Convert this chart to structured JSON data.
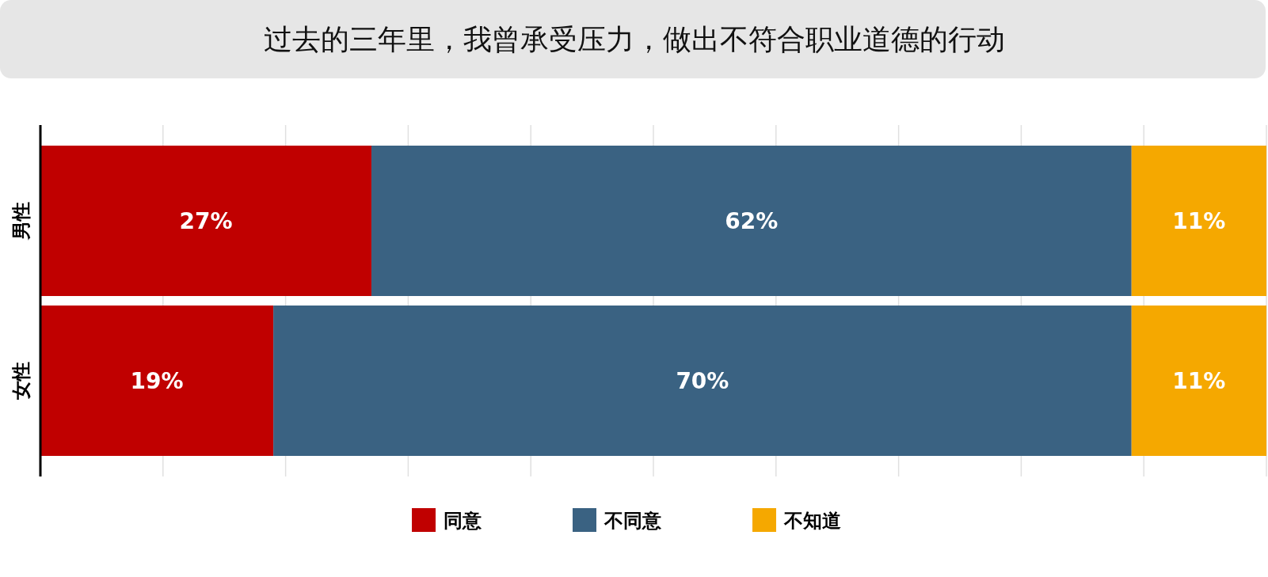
{
  "chart_data": {
    "type": "bar",
    "orientation": "horizontal",
    "stacked": true,
    "title": "过去的三年里，我曾承受压力，做出不符合职业道德的行动",
    "categories": [
      "男性",
      "女性"
    ],
    "series": [
      {
        "name": "同意",
        "color": "#c00000",
        "values": [
          27,
          19
        ],
        "value_labels": [
          "27%",
          "19%"
        ]
      },
      {
        "name": "不同意",
        "color": "#3a6282",
        "values": [
          62,
          70
        ],
        "value_labels": [
          "62%",
          "70%"
        ]
      },
      {
        "name": "不知道",
        "color": "#f5a800",
        "values": [
          11,
          11
        ],
        "value_labels": [
          "11%",
          "11%"
        ]
      }
    ],
    "xlim": [
      0,
      100
    ],
    "xticks": [
      {
        "value": 0,
        "label": null
      },
      {
        "value": 10,
        "label": null
      },
      {
        "value": 20,
        "label": null
      },
      {
        "value": 30,
        "label": null
      },
      {
        "value": 40,
        "label": null
      },
      {
        "value": 50,
        "label": null
      },
      {
        "value": 60,
        "label": null
      },
      {
        "value": 70,
        "label": null
      },
      {
        "value": 80,
        "label": null
      },
      {
        "value": 90,
        "label": null
      },
      {
        "value": 100,
        "label": null
      }
    ],
    "tick_labels": "y",
    "grid": "x",
    "legend": "bottom"
  }
}
